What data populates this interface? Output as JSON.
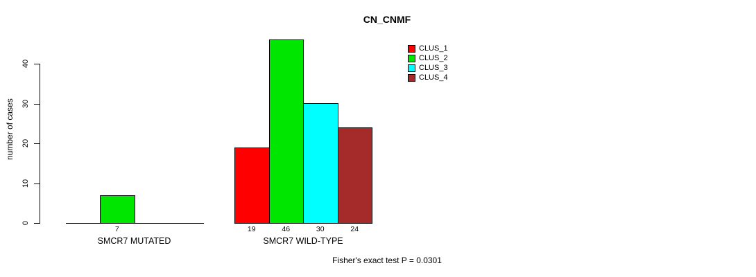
{
  "chart_data": {
    "type": "bar",
    "title": "CN_CNMF",
    "ylabel": "number of cases",
    "xlabel": "",
    "ylim": [
      0,
      46
    ],
    "yticks": [
      0,
      10,
      20,
      30,
      40
    ],
    "grid": false,
    "legend_position": "top-right-inside",
    "categories": [
      "SMCR7 MUTATED",
      "SMCR7 WILD-TYPE"
    ],
    "series": [
      {
        "name": "CLUS_1",
        "color": "#FF0000",
        "values": [
          0,
          19
        ]
      },
      {
        "name": "CLUS_2",
        "color": "#00E600",
        "values": [
          7,
          46
        ]
      },
      {
        "name": "CLUS_3",
        "color": "#00FFFF",
        "values": [
          0,
          30
        ]
      },
      {
        "name": "CLUS_4",
        "color": "#A52A2A",
        "values": [
          0,
          24
        ]
      }
    ],
    "bar_value_labels": [
      [
        null,
        "7",
        null,
        null
      ],
      [
        "19",
        "46",
        "30",
        "24"
      ]
    ],
    "footnote": "Fisher's exact test P = 0.0301",
    "bar_border_color": "#000000",
    "text_color": "#000000",
    "background_color": "#FFFFFF"
  }
}
